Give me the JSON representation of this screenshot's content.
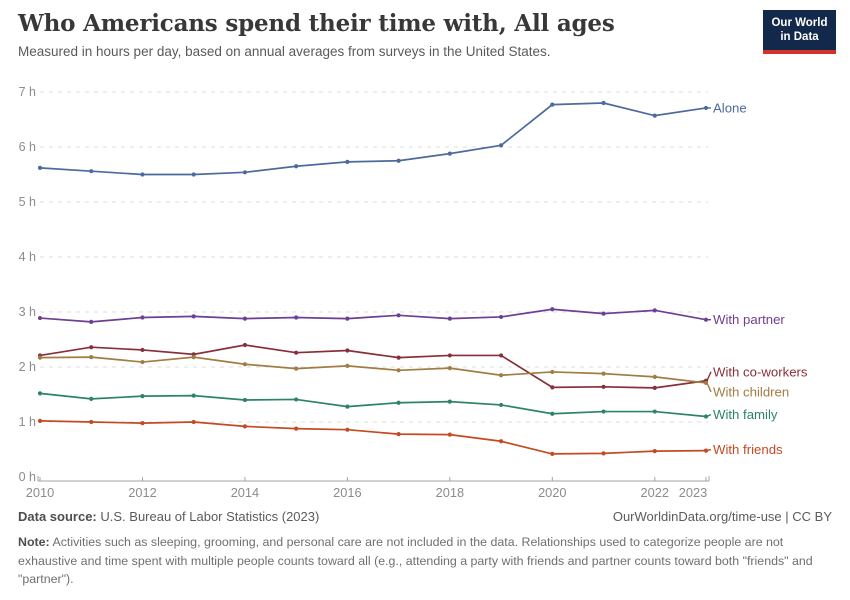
{
  "header": {
    "title": "Who Americans spend their time with, All ages",
    "subtitle": "Measured in hours per day, based on annual averages from surveys in the United States.",
    "logo": {
      "line1": "Our World",
      "line2": "in Data",
      "bg_color": "#13294c",
      "stripe_color": "#ce342b"
    }
  },
  "chart_data": {
    "type": "line",
    "title": "Who Americans spend their time with, All ages",
    "xlabel": "",
    "ylabel": "hours per day",
    "ylim": [
      0,
      7
    ],
    "y_tick_format": "{v} h",
    "y_ticks": [
      0,
      1,
      2,
      3,
      4,
      5,
      6,
      7
    ],
    "grid": "dashed horizontal",
    "legend_position": "right edge labels",
    "x": [
      2010,
      2011,
      2012,
      2013,
      2014,
      2015,
      2016,
      2017,
      2018,
      2019,
      2020,
      2021,
      2022,
      2023
    ],
    "x_tick_labels": [
      2010,
      2012,
      2014,
      2016,
      2018,
      2020,
      2022,
      2023
    ],
    "series": [
      {
        "name": "Alone",
        "color": "#4C6A9C",
        "values": [
          5.62,
          5.56,
          5.5,
          5.5,
          5.54,
          5.65,
          5.73,
          5.75,
          5.88,
          6.03,
          6.77,
          6.8,
          6.57,
          6.71
        ]
      },
      {
        "name": "With partner",
        "color": "#6D3E91",
        "values": [
          2.89,
          2.82,
          2.9,
          2.92,
          2.88,
          2.9,
          2.88,
          2.94,
          2.88,
          2.91,
          3.05,
          2.97,
          3.03,
          2.86
        ]
      },
      {
        "name": "With co-workers",
        "color": "#883039",
        "values": [
          2.21,
          2.36,
          2.31,
          2.23,
          2.4,
          2.26,
          2.3,
          2.17,
          2.21,
          2.21,
          1.63,
          1.64,
          1.62,
          1.75
        ]
      },
      {
        "name": "With children",
        "color": "#A27C42",
        "values": [
          2.17,
          2.18,
          2.09,
          2.18,
          2.05,
          1.97,
          2.02,
          1.94,
          1.98,
          1.85,
          1.91,
          1.88,
          1.82,
          1.71
        ]
      },
      {
        "name": "With family",
        "color": "#2C8465",
        "values": [
          1.52,
          1.42,
          1.47,
          1.48,
          1.4,
          1.41,
          1.28,
          1.35,
          1.37,
          1.31,
          1.15,
          1.19,
          1.19,
          1.1
        ]
      },
      {
        "name": "With friends",
        "color": "#C44A22",
        "values": [
          1.02,
          1.0,
          0.98,
          1.0,
          0.92,
          0.88,
          0.86,
          0.78,
          0.77,
          0.65,
          0.42,
          0.43,
          0.47,
          0.48
        ]
      }
    ]
  },
  "footer": {
    "source_label": "Data source:",
    "source_value": "U.S. Bureau of Labor Statistics (2023)",
    "credit": "OurWorldinData.org/time-use | CC BY",
    "note_label": "Note:",
    "note_text": "Activities such as sleeping, grooming, and personal care are not included in the data. Relationships used to categorize people are not exhaustive and time spent with multiple people counts toward all (e.g., attending a party with friends and partner counts toward both \"friends\" and \"partner\")."
  }
}
